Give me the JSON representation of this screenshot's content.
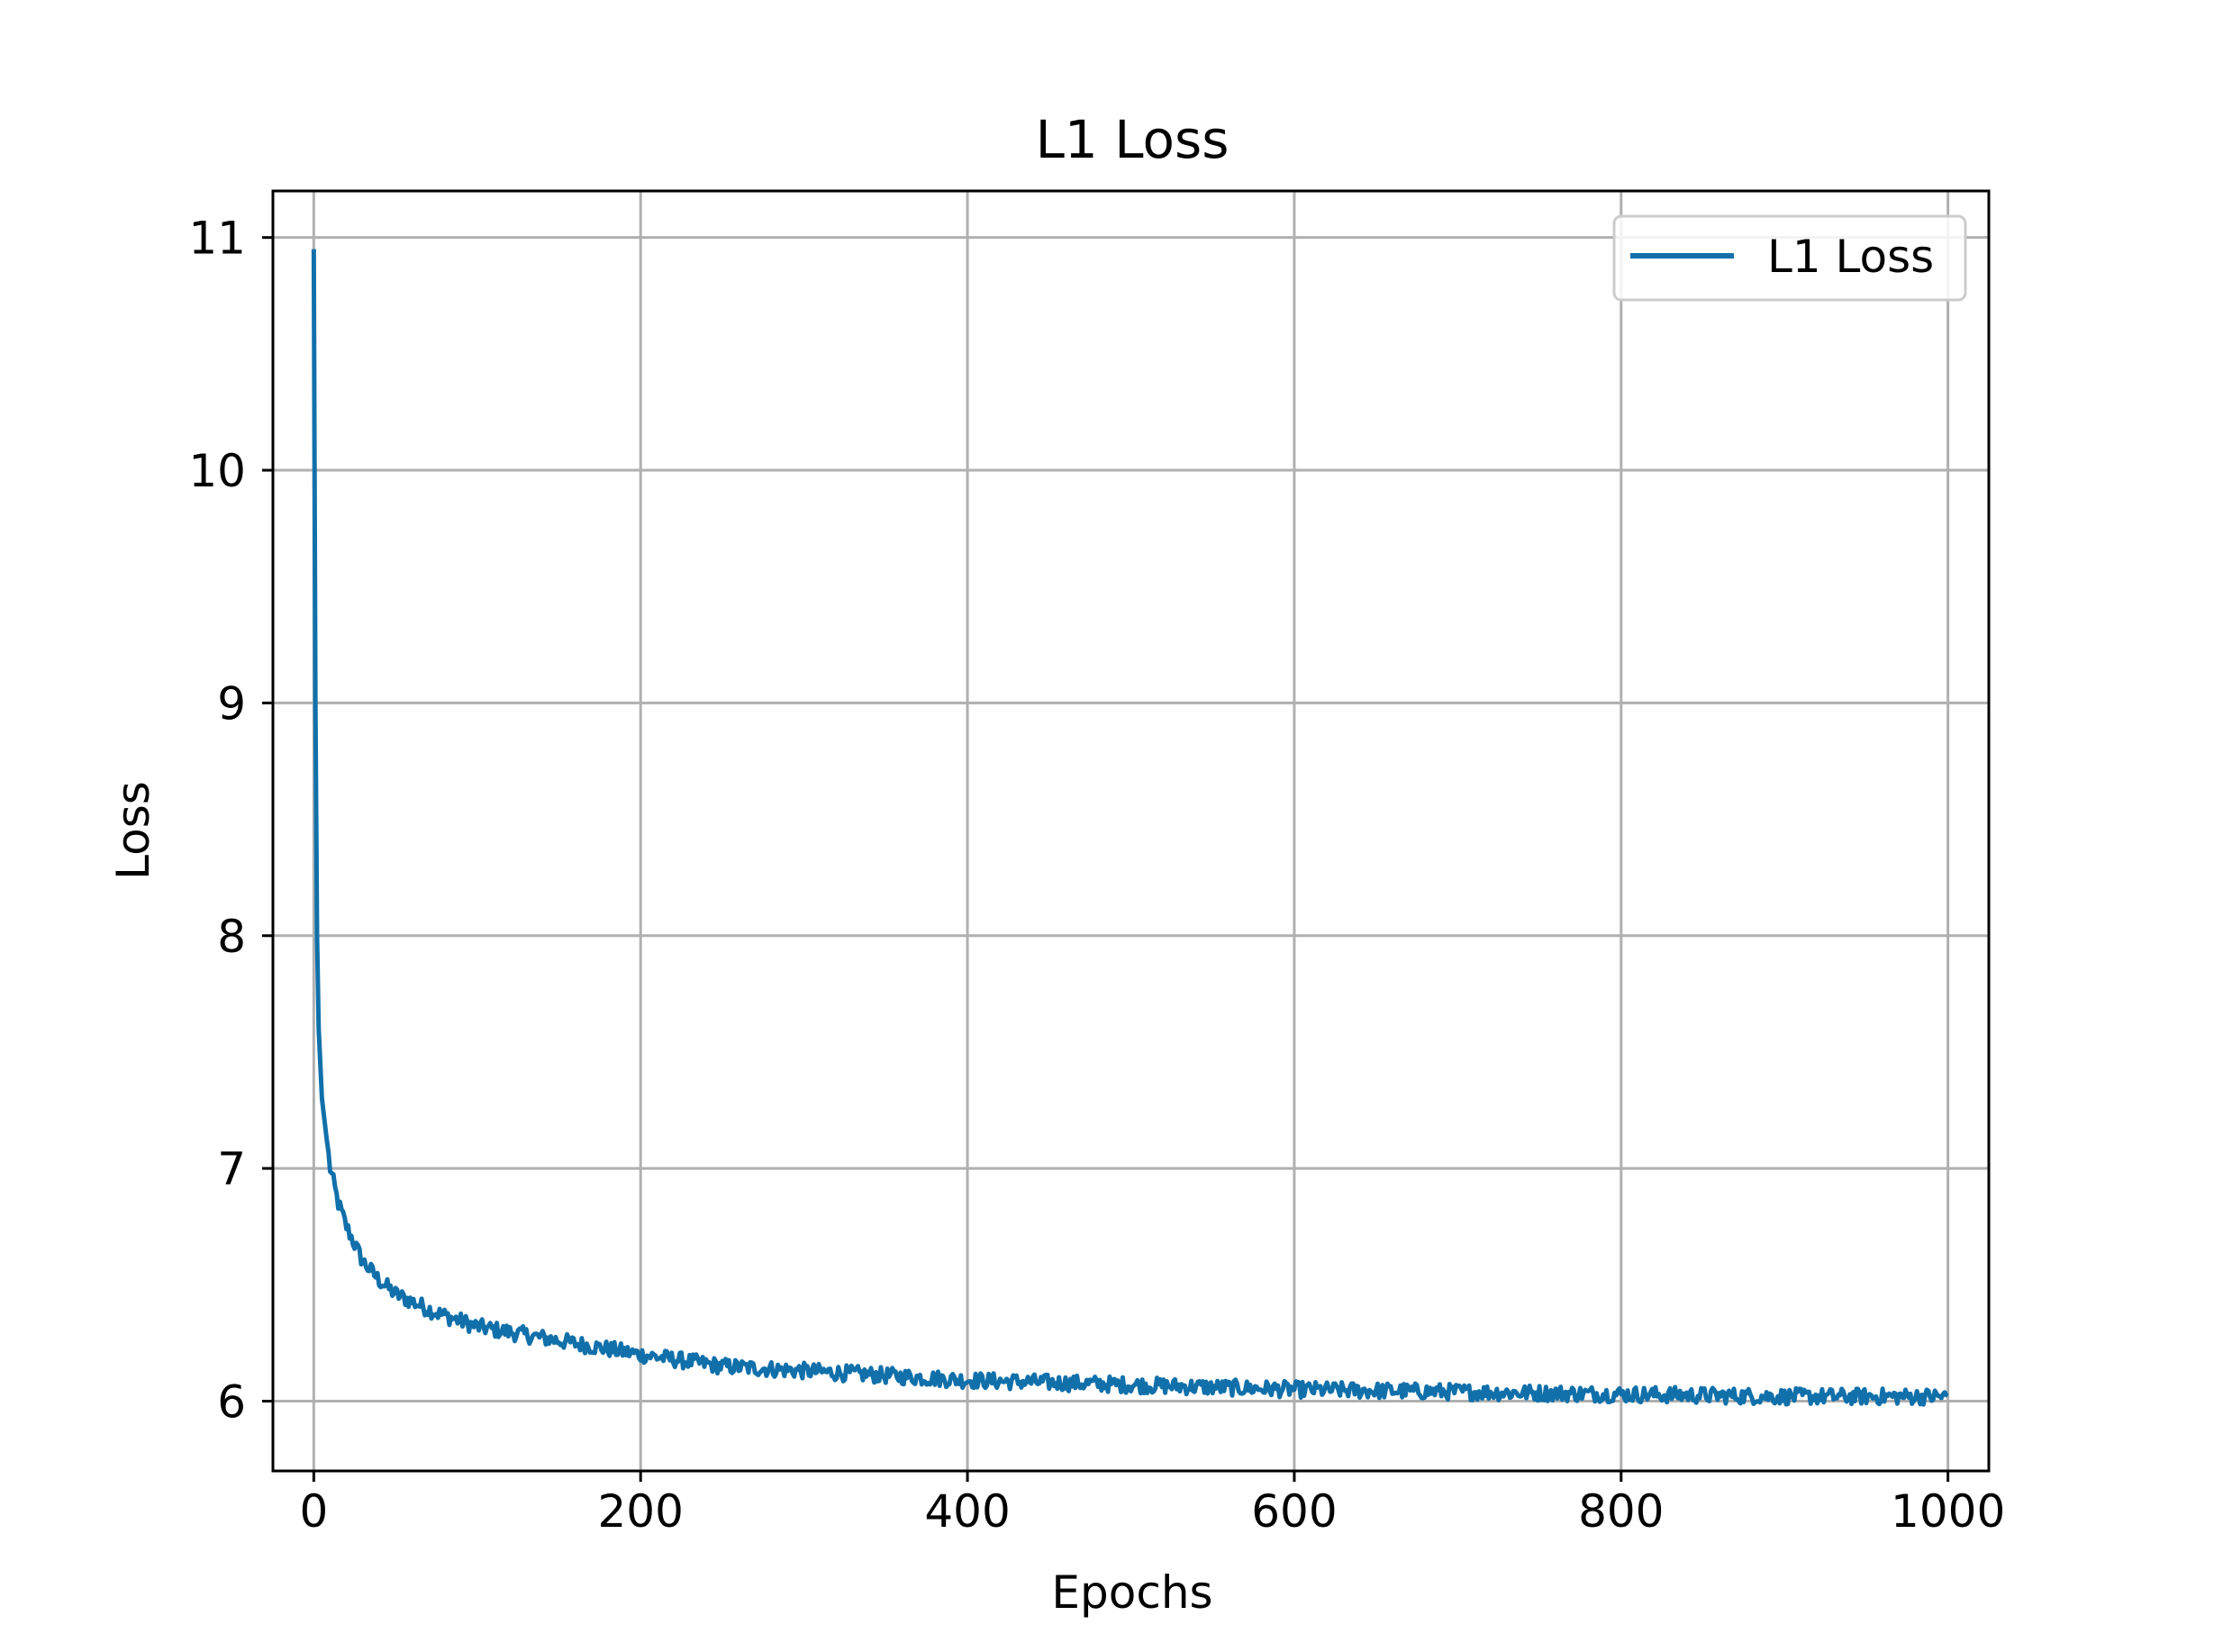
{
  "chart_data": {
    "type": "line",
    "title": "L1 Loss",
    "xlabel": "Epochs",
    "ylabel": "Loss",
    "xlim": [
      -25,
      1025
    ],
    "ylim": [
      5.7,
      11.2
    ],
    "xticks": [
      0,
      200,
      400,
      600,
      800,
      1000
    ],
    "yticks": [
      6,
      7,
      8,
      9,
      10,
      11
    ],
    "xtick_labels": [
      "0",
      "200",
      "400",
      "600",
      "800",
      "1000"
    ],
    "ytick_labels": [
      "6",
      "7",
      "8",
      "9",
      "10",
      "11"
    ],
    "grid": true,
    "legend": "top-right",
    "series": [
      {
        "name": "L1 Loss",
        "color": "#1170aa",
        "anchors": [
          [
            0,
            10.95
          ],
          [
            1,
            9.0
          ],
          [
            2,
            8.0
          ],
          [
            3,
            7.6
          ],
          [
            5,
            7.3
          ],
          [
            10,
            7.0
          ],
          [
            15,
            6.85
          ],
          [
            20,
            6.75
          ],
          [
            30,
            6.6
          ],
          [
            40,
            6.52
          ],
          [
            50,
            6.46
          ],
          [
            75,
            6.38
          ],
          [
            100,
            6.32
          ],
          [
            150,
            6.26
          ],
          [
            200,
            6.2
          ],
          [
            250,
            6.15
          ],
          [
            300,
            6.13
          ],
          [
            350,
            6.11
          ],
          [
            400,
            6.09
          ],
          [
            500,
            6.07
          ],
          [
            600,
            6.05
          ],
          [
            700,
            6.04
          ],
          [
            800,
            6.03
          ],
          [
            900,
            6.02
          ],
          [
            1000,
            6.02
          ]
        ],
        "noise": 0.035
      }
    ]
  }
}
